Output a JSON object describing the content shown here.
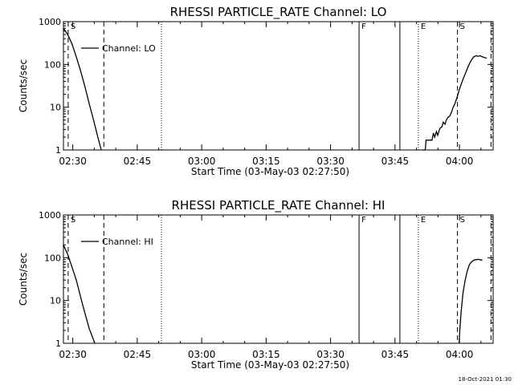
{
  "footer_timestamp": "18-Oct-2021 01:30",
  "chart_data": [
    {
      "type": "line",
      "title": "RHESSI PARTICLE_RATE Channel: LO",
      "xlabel": "Start Time (03-May-03 02:27:50)",
      "ylabel": "Counts/sec",
      "yscale": "log",
      "ylim": [
        1,
        1000
      ],
      "xlim_minutes": [
        0,
        100
      ],
      "x_ticks": [
        {
          "minute": 2.17,
          "label": "02:30"
        },
        {
          "minute": 17.17,
          "label": "02:45"
        },
        {
          "minute": 32.17,
          "label": "03:00"
        },
        {
          "minute": 47.17,
          "label": "03:15"
        },
        {
          "minute": 62.17,
          "label": "03:30"
        },
        {
          "minute": 77.17,
          "label": "03:45"
        },
        {
          "minute": 92.17,
          "label": "04:00"
        }
      ],
      "y_ticks": [
        {
          "value": 1,
          "label": "1"
        },
        {
          "value": 10,
          "label": "10"
        },
        {
          "value": 100,
          "label": "100"
        },
        {
          "value": 1000,
          "label": "1000"
        }
      ],
      "legend": {
        "position": "top-left",
        "label": "Channel: LO"
      },
      "markers": [
        {
          "minute": 1.1,
          "style": "dashed",
          "label": "S"
        },
        {
          "minute": 9.4,
          "style": "dashed",
          "label": ""
        },
        {
          "minute": 22.8,
          "style": "dotted",
          "label": ""
        },
        {
          "minute": 68.8,
          "style": "solid",
          "label": "F"
        },
        {
          "minute": 78.3,
          "style": "solid",
          "label": ""
        },
        {
          "minute": 82.6,
          "style": "dotted",
          "label": "E"
        },
        {
          "minute": 91.7,
          "style": "dashed",
          "label": "S"
        },
        {
          "minute": 99.5,
          "style": "dashed",
          "label": ""
        }
      ],
      "series": [
        {
          "name": "Channel: LO",
          "segments": [
            [
              [
                0,
                700
              ],
              [
                1,
                500
              ],
              [
                2,
                300
              ],
              [
                3,
                150
              ],
              [
                4,
                70
              ],
              [
                5,
                30
              ],
              [
                6,
                12
              ],
              [
                7,
                5
              ],
              [
                8,
                2
              ],
              [
                8.8,
                1
              ]
            ],
            [
              [
                83.5,
                1
              ],
              [
                84.2,
                1
              ],
              [
                84.4,
                1.7
              ],
              [
                85.8,
                1.7
              ],
              [
                86.1,
                2.5
              ],
              [
                86.4,
                2.0
              ],
              [
                86.8,
                2.7
              ],
              [
                87.1,
                2.2
              ],
              [
                87.6,
                3.2
              ],
              [
                88.1,
                3.5
              ],
              [
                88.4,
                4.5
              ],
              [
                88.8,
                4.0
              ],
              [
                89.1,
                5.0
              ],
              [
                89.5,
                5.8
              ],
              [
                89.9,
                6.2
              ],
              [
                90.3,
                7.5
              ],
              [
                90.7,
                10
              ],
              [
                91.1,
                12
              ],
              [
                91.6,
                17
              ],
              [
                92.1,
                25
              ],
              [
                92.6,
                35
              ],
              [
                93.0,
                45
              ],
              [
                93.5,
                60
              ],
              [
                94.0,
                80
              ],
              [
                94.5,
                105
              ],
              [
                95.0,
                130
              ],
              [
                95.5,
                150
              ],
              [
                96.0,
                160
              ],
              [
                96.5,
                155
              ],
              [
                97.0,
                160
              ],
              [
                97.5,
                150
              ],
              [
                98.0,
                145
              ],
              [
                98.5,
                140
              ]
            ]
          ]
        }
      ]
    },
    {
      "type": "line",
      "title": "RHESSI PARTICLE_RATE Channel: HI",
      "xlabel": "Start Time (03-May-03 02:27:50)",
      "ylabel": "Counts/sec",
      "yscale": "log",
      "ylim": [
        1,
        1000
      ],
      "xlim_minutes": [
        0,
        100
      ],
      "x_ticks": [
        {
          "minute": 2.17,
          "label": "02:30"
        },
        {
          "minute": 17.17,
          "label": "02:45"
        },
        {
          "minute": 32.17,
          "label": "03:00"
        },
        {
          "minute": 47.17,
          "label": "03:15"
        },
        {
          "minute": 62.17,
          "label": "03:30"
        },
        {
          "minute": 77.17,
          "label": "03:45"
        },
        {
          "minute": 92.17,
          "label": "04:00"
        }
      ],
      "y_ticks": [
        {
          "value": 1,
          "label": "1"
        },
        {
          "value": 10,
          "label": "10"
        },
        {
          "value": 100,
          "label": "100"
        },
        {
          "value": 1000,
          "label": "1000"
        }
      ],
      "legend": {
        "position": "top-left",
        "label": "Channel: HI"
      },
      "markers": [
        {
          "minute": 1.1,
          "style": "dashed",
          "label": "S"
        },
        {
          "minute": 9.4,
          "style": "dashed",
          "label": ""
        },
        {
          "minute": 22.8,
          "style": "dotted",
          "label": ""
        },
        {
          "minute": 68.8,
          "style": "solid",
          "label": "F"
        },
        {
          "minute": 78.3,
          "style": "solid",
          "label": ""
        },
        {
          "minute": 82.6,
          "style": "dotted",
          "label": "E"
        },
        {
          "minute": 91.7,
          "style": "dashed",
          "label": "S"
        },
        {
          "minute": 99.5,
          "style": "dashed",
          "label": ""
        }
      ],
      "series": [
        {
          "name": "Channel: HI",
          "segments": [
            [
              [
                0,
                200
              ],
              [
                1,
                120
              ],
              [
                2,
                60
              ],
              [
                3,
                30
              ],
              [
                4,
                12
              ],
              [
                5,
                5
              ],
              [
                6,
                2.2
              ],
              [
                7,
                1.2
              ],
              [
                7.3,
                1
              ]
            ],
            [
              [
                92.1,
                1
              ],
              [
                92.3,
                2.5
              ],
              [
                92.6,
                6
              ],
              [
                93.0,
                15
              ],
              [
                93.5,
                30
              ],
              [
                94.0,
                50
              ],
              [
                94.5,
                70
              ],
              [
                95.0,
                80
              ],
              [
                95.5,
                88
              ],
              [
                96.0,
                90
              ],
              [
                96.5,
                92
              ],
              [
                97.0,
                90
              ],
              [
                97.5,
                88
              ]
            ]
          ]
        }
      ]
    }
  ]
}
